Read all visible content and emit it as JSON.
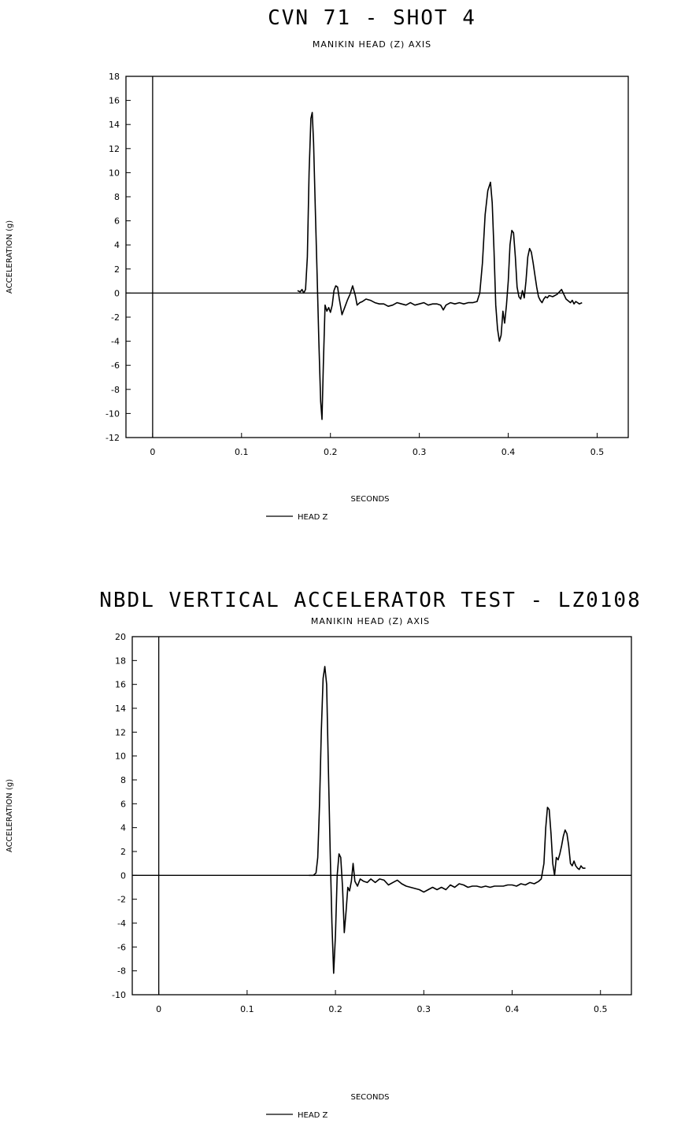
{
  "chart_data": [
    {
      "type": "line",
      "title": "CVN 71 - SHOT 4",
      "subtitle": "MANIKIN HEAD (Z) AXIS",
      "xlabel": "SECONDS",
      "ylabel": "ACCELERATION (g)",
      "xlim": [
        -0.03,
        0.535
      ],
      "ylim": [
        -12,
        18
      ],
      "xticks": [
        0,
        0.1,
        0.2,
        0.3,
        0.4,
        0.5
      ],
      "xtick_labels": [
        "0",
        "0.1",
        "0.2",
        "0.3",
        "0.4",
        "0.5"
      ],
      "yticks": [
        18,
        16,
        14,
        12,
        10,
        8,
        6,
        4,
        2,
        0,
        -2,
        -4,
        -6,
        -8,
        -10,
        -12
      ],
      "ytick_labels": [
        "18",
        "16",
        "14",
        "12",
        "10",
        "8",
        "6",
        "4",
        "2",
        "0",
        "-2",
        "-4",
        "-6",
        "-8",
        "-10",
        "-12"
      ],
      "grid": false,
      "legend_position": "bottom-center",
      "series": [
        {
          "name": "HEAD Z",
          "x": [
            0.163,
            0.166,
            0.168,
            0.17,
            0.172,
            0.174,
            0.176,
            0.178,
            0.1795,
            0.181,
            0.183,
            0.185,
            0.187,
            0.189,
            0.1905,
            0.192,
            0.194,
            0.196,
            0.198,
            0.2,
            0.202,
            0.204,
            0.206,
            0.208,
            0.21,
            0.213,
            0.216,
            0.219,
            0.222,
            0.225,
            0.228,
            0.23,
            0.233,
            0.236,
            0.24,
            0.245,
            0.25,
            0.255,
            0.26,
            0.265,
            0.27,
            0.275,
            0.28,
            0.285,
            0.29,
            0.295,
            0.3,
            0.305,
            0.31,
            0.315,
            0.32,
            0.324,
            0.327,
            0.33,
            0.335,
            0.34,
            0.345,
            0.35,
            0.355,
            0.36,
            0.365,
            0.368,
            0.371,
            0.374,
            0.377,
            0.38,
            0.382,
            0.384,
            0.386,
            0.388,
            0.39,
            0.392,
            0.394,
            0.396,
            0.398,
            0.4,
            0.402,
            0.404,
            0.406,
            0.408,
            0.41,
            0.412,
            0.414,
            0.416,
            0.418,
            0.42,
            0.422,
            0.424,
            0.426,
            0.428,
            0.43,
            0.432,
            0.434,
            0.436,
            0.438,
            0.44,
            0.442,
            0.444,
            0.446,
            0.45,
            0.455,
            0.46,
            0.465,
            0.47,
            0.472,
            0.474,
            0.476,
            0.478,
            0.48,
            0.483
          ],
          "y": [
            0.2,
            0.1,
            0.3,
            0.0,
            0.3,
            3.0,
            10.0,
            14.5,
            15.0,
            12.5,
            7.0,
            1.5,
            -4.0,
            -9.0,
            -10.5,
            -6.0,
            -1.0,
            -1.5,
            -1.2,
            -1.6,
            -1.0,
            0.2,
            0.6,
            0.5,
            -0.5,
            -1.8,
            -1.2,
            -0.6,
            -0.1,
            0.6,
            -0.2,
            -1.0,
            -0.8,
            -0.7,
            -0.5,
            -0.6,
            -0.8,
            -0.9,
            -0.9,
            -1.1,
            -1.0,
            -0.8,
            -0.9,
            -1.0,
            -0.8,
            -1.0,
            -0.9,
            -0.8,
            -1.0,
            -0.9,
            -0.9,
            -1.0,
            -1.4,
            -1.0,
            -0.8,
            -0.9,
            -0.8,
            -0.9,
            -0.8,
            -0.8,
            -0.7,
            0.0,
            2.5,
            6.5,
            8.5,
            9.2,
            7.5,
            3.5,
            -1.0,
            -3.0,
            -4.0,
            -3.5,
            -1.5,
            -2.5,
            -1.0,
            1.0,
            4.0,
            5.2,
            5.0,
            3.0,
            0.5,
            -0.3,
            -0.5,
            0.2,
            -0.4,
            1.0,
            3.0,
            3.7,
            3.4,
            2.5,
            1.5,
            0.5,
            -0.3,
            -0.6,
            -0.8,
            -0.5,
            -0.3,
            -0.4,
            -0.2,
            -0.3,
            -0.1,
            0.3,
            -0.5,
            -0.8,
            -0.6,
            -0.9,
            -0.7,
            -0.8,
            -0.9,
            -0.8
          ]
        }
      ]
    },
    {
      "type": "line",
      "title": "NBDL VERTICAL ACCELERATOR TEST - LZ0108",
      "subtitle": "MANIKIN HEAD (Z) AXIS",
      "xlabel": "SECONDS",
      "ylabel": "ACCELERATION (g)",
      "xlim": [
        -0.03,
        0.535
      ],
      "ylim": [
        -10,
        20
      ],
      "xticks": [
        0,
        0.1,
        0.2,
        0.3,
        0.4,
        0.5
      ],
      "xtick_labels": [
        "0",
        "0.1",
        "0.2",
        "0.3",
        "0.4",
        "0.5"
      ],
      "yticks": [
        20,
        18,
        16,
        14,
        12,
        10,
        8,
        6,
        4,
        2,
        0,
        -2,
        -4,
        -6,
        -8,
        -10
      ],
      "ytick_labels": [
        "20",
        "18",
        "16",
        "14",
        "12",
        "10",
        "8",
        "6",
        "4",
        "2",
        "0",
        "-2",
        "-4",
        "-6",
        "-8",
        "-10"
      ],
      "grid": false,
      "legend_position": "bottom-center",
      "series": [
        {
          "name": "HEAD Z",
          "x": [
            0.17,
            0.175,
            0.178,
            0.18,
            0.182,
            0.184,
            0.186,
            0.188,
            0.19,
            0.192,
            0.194,
            0.196,
            0.198,
            0.2,
            0.202,
            0.204,
            0.206,
            0.208,
            0.21,
            0.212,
            0.214,
            0.216,
            0.218,
            0.22,
            0.222,
            0.225,
            0.228,
            0.232,
            0.236,
            0.24,
            0.245,
            0.25,
            0.255,
            0.26,
            0.265,
            0.27,
            0.275,
            0.28,
            0.285,
            0.29,
            0.295,
            0.3,
            0.305,
            0.31,
            0.315,
            0.32,
            0.325,
            0.33,
            0.335,
            0.34,
            0.345,
            0.35,
            0.355,
            0.36,
            0.365,
            0.37,
            0.375,
            0.38,
            0.385,
            0.39,
            0.395,
            0.4,
            0.405,
            0.41,
            0.415,
            0.42,
            0.425,
            0.43,
            0.433,
            0.436,
            0.438,
            0.44,
            0.442,
            0.444,
            0.446,
            0.448,
            0.45,
            0.452,
            0.454,
            0.456,
            0.458,
            0.46,
            0.462,
            0.464,
            0.466,
            0.468,
            0.47,
            0.472,
            0.474,
            0.476,
            0.478,
            0.48,
            0.483
          ],
          "y": [
            0.0,
            0.0,
            0.2,
            1.5,
            6.0,
            12.0,
            16.5,
            17.5,
            16.0,
            9.0,
            2.0,
            -4.0,
            -8.2,
            -5.0,
            0.0,
            1.8,
            1.5,
            -1.0,
            -4.8,
            -3.0,
            -1.0,
            -1.3,
            -0.5,
            1.0,
            -0.5,
            -0.9,
            -0.3,
            -0.5,
            -0.6,
            -0.3,
            -0.6,
            -0.3,
            -0.4,
            -0.8,
            -0.6,
            -0.4,
            -0.7,
            -0.9,
            -1.0,
            -1.1,
            -1.2,
            -1.4,
            -1.2,
            -1.0,
            -1.2,
            -1.0,
            -1.2,
            -0.8,
            -1.0,
            -0.7,
            -0.8,
            -1.0,
            -0.9,
            -0.9,
            -1.0,
            -0.9,
            -1.0,
            -0.9,
            -0.9,
            -0.9,
            -0.8,
            -0.8,
            -0.9,
            -0.7,
            -0.8,
            -0.6,
            -0.7,
            -0.5,
            -0.3,
            1.0,
            4.0,
            5.7,
            5.5,
            3.5,
            1.0,
            0.0,
            1.5,
            1.3,
            1.8,
            2.5,
            3.3,
            3.8,
            3.5,
            2.5,
            1.0,
            0.8,
            1.2,
            0.8,
            0.6,
            0.5,
            0.8,
            0.6,
            0.6
          ]
        }
      ]
    }
  ]
}
